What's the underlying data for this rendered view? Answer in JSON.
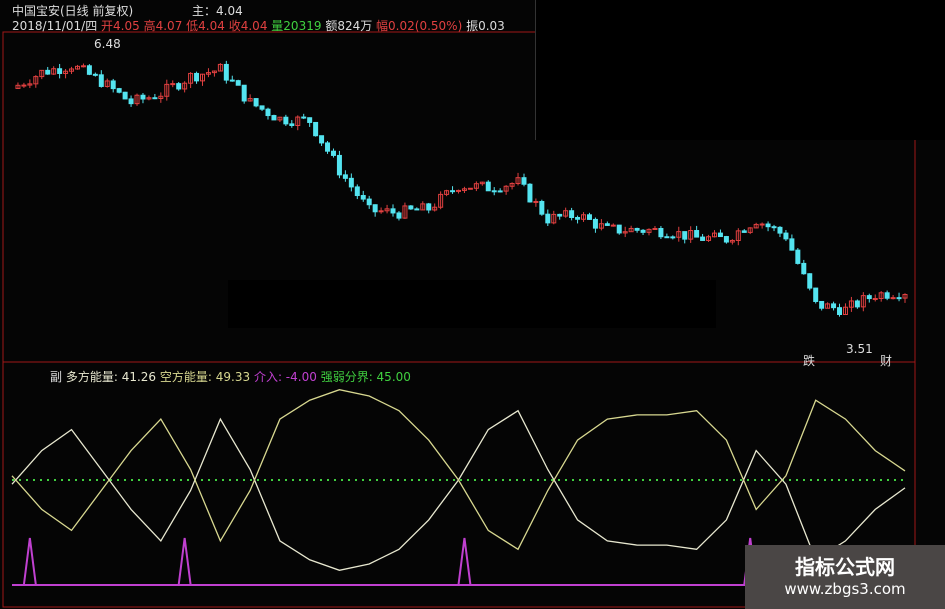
{
  "header": {
    "title": "中国宝安(日线 前复权)",
    "main_label": "主：4.04",
    "date": "2018/11/01/四",
    "open": "开4.05",
    "high": "高4.07",
    "low": "低4.04",
    "close": "收4.04",
    "volume": "量20319",
    "amount": "额824万",
    "change": "幅0.02(0.50%)",
    "amplitude": "振0.03"
  },
  "sub_header": {
    "label": "副",
    "multi": "多方能量: 41.26",
    "empty": "空方能量: 49.33",
    "enter": "介入: -4.00",
    "boundary": "强弱分界: 45.00"
  },
  "annotations": {
    "max": "6.48",
    "min": "3.51",
    "mark1": "跌",
    "mark2": "财"
  },
  "watermark": {
    "title": "指标公式网",
    "url": "www.zbgs3.com"
  },
  "colors": {
    "up": "#e04040",
    "down": "#54e4f0",
    "multi": "#e8e8d0",
    "empty": "#d8d890",
    "enter": "#c040d0",
    "boundary": "#40d040",
    "frame": "#a01818"
  },
  "chart_data": [
    {
      "type": "candlestick",
      "ylim": [
        3.51,
        6.48
      ],
      "closes_sampled": [
        6.05,
        6.21,
        6.28,
        6.12,
        5.91,
        6.0,
        6.17,
        6.24,
        5.91,
        5.75,
        5.73,
        5.24,
        4.84,
        4.82,
        4.86,
        5.09,
        5.07,
        5.12,
        4.76,
        4.8,
        4.65,
        4.65,
        4.64,
        4.57,
        4.56,
        4.75,
        4.59,
        3.91,
        3.86,
        4.01,
        4.04
      ]
    },
    {
      "type": "line",
      "ylim": [
        0,
        100
      ],
      "series": [
        {
          "name": "多方能量",
          "values": [
            43,
            59,
            69,
            50,
            31,
            16,
            40,
            74,
            50,
            16,
            7,
            2,
            5,
            12,
            26,
            45,
            69,
            78,
            50,
            26,
            16,
            14,
            14,
            12,
            26,
            59,
            43,
            7,
            16,
            31,
            41.26
          ]
        },
        {
          "name": "空方能量",
          "values": [
            47,
            31,
            21,
            40,
            59,
            74,
            50,
            16,
            40,
            74,
            83,
            88,
            85,
            78,
            64,
            45,
            21,
            12,
            40,
            64,
            74,
            76,
            76,
            78,
            64,
            31,
            47,
            83,
            74,
            59,
            49.33
          ]
        },
        {
          "name": "强弱分界",
          "values": [
            45
          ]
        },
        {
          "name": "介入",
          "spikes_at_sample": [
            0.6,
            5.8,
            15.2,
            24.8
          ]
        }
      ]
    }
  ]
}
